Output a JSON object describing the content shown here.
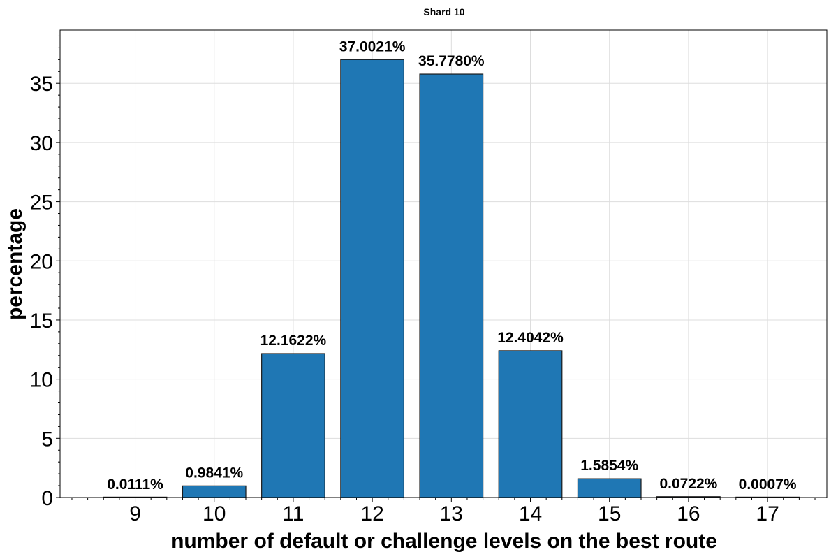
{
  "chart_data": {
    "type": "bar",
    "title": "Shard 10",
    "xlabel": "number of default or challenge levels on the best route",
    "ylabel": "percentage",
    "categories": [
      "9",
      "10",
      "11",
      "12",
      "13",
      "14",
      "15",
      "16",
      "17"
    ],
    "values": [
      0.0111,
      0.9841,
      12.1622,
      37.0021,
      35.778,
      12.4042,
      1.5854,
      0.0722,
      0.0007
    ],
    "data_labels": [
      "0.0111%",
      "0.9841%",
      "12.1622%",
      "37.0021%",
      "35.7780%",
      "12.4042%",
      "1.5854%",
      "0.0722%",
      "0.0007%"
    ],
    "yticks": [
      "0",
      "5",
      "10",
      "15",
      "20",
      "25",
      "30",
      "35"
    ],
    "ylim": [
      0,
      39.5
    ],
    "xlim": [
      8.05,
      17.75
    ],
    "grid": true,
    "bar_color": "#1f77b4",
    "bar_edge_color": "#1a1a1a"
  }
}
